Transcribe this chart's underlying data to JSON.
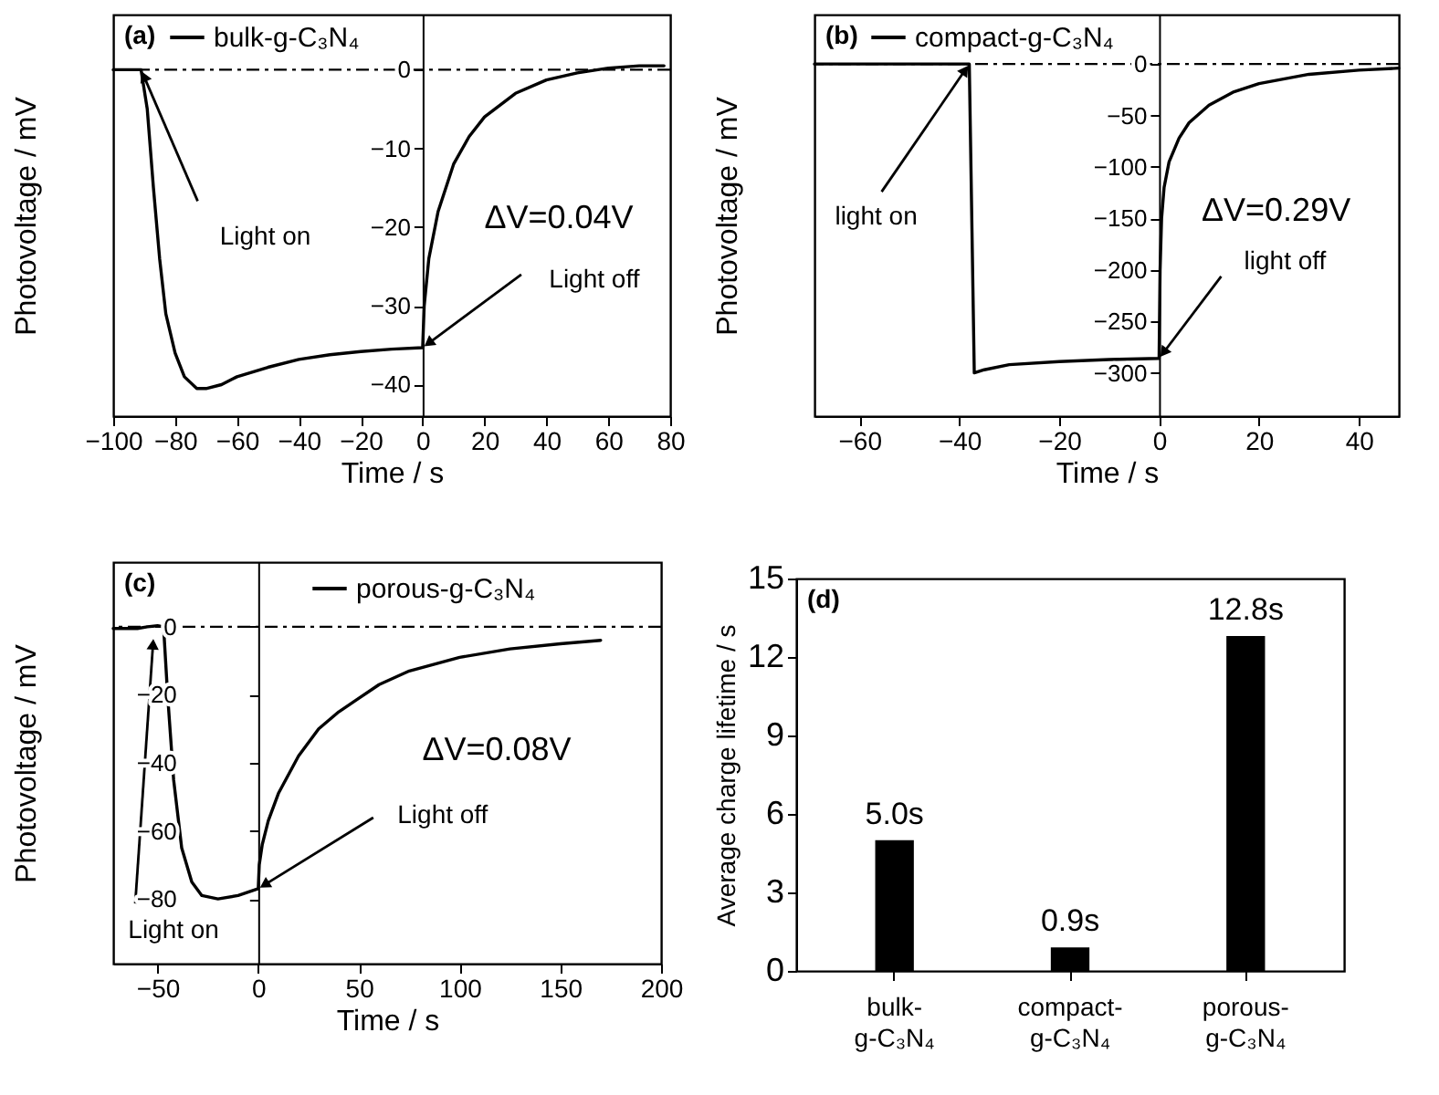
{
  "chart_data": [
    {
      "type": "line",
      "title": "(a)",
      "xlabel": "Time / s",
      "ylabel": "Photovoltage / mV",
      "x": [
        -100,
        -91,
        -89,
        -87,
        -85,
        -83,
        -80,
        -77,
        -73,
        -70,
        -65,
        -60,
        -50,
        -40,
        -30,
        -20,
        -10,
        0,
        0.5,
        2,
        5,
        10,
        15,
        20,
        30,
        40,
        50,
        60,
        70,
        78
      ],
      "series": [
        {
          "name": "bulk-g-C₃N₄",
          "color": "#000000",
          "values": [
            0,
            0,
            -5,
            -15,
            -24,
            -31,
            -36,
            -39,
            -40.5,
            -40.5,
            -40,
            -39,
            -37.8,
            -36.8,
            -36.2,
            -35.8,
            -35.5,
            -35.3,
            -30,
            -24,
            -18,
            -12,
            -8.5,
            -6,
            -3,
            -1.3,
            -0.4,
            0.2,
            0.5,
            0.5
          ]
        }
      ],
      "xlim": [
        -100,
        80
      ],
      "xticks": [
        -100,
        -80,
        -60,
        -40,
        -20,
        0,
        20,
        40,
        60,
        80
      ],
      "ylim": [
        -44,
        7
      ],
      "yticks": [
        -40,
        -30,
        -20,
        -10,
        0
      ],
      "legend": "top left",
      "ref_lines": [
        {
          "axis": "y",
          "value": 0,
          "line_style": "dashdot"
        }
      ],
      "annotations": [
        {
          "text": "Light on",
          "x": -91,
          "y": 0
        },
        {
          "text": "Light off",
          "x": 0,
          "y": -35.3
        },
        "ΔV=0.04V"
      ]
    },
    {
      "type": "line",
      "title": "(b)",
      "xlabel": "Time / s",
      "ylabel": "Photovoltage / mV",
      "x": [
        -69,
        -38,
        -37,
        -35,
        -30,
        -20,
        -10,
        0,
        0.2,
        0.5,
        1,
        2,
        4,
        6,
        10,
        15,
        20,
        30,
        40,
        48
      ],
      "series": [
        {
          "name": "compact-g-C₃N₄",
          "color": "#000000",
          "values": [
            0,
            0,
            -300,
            -297,
            -292,
            -289,
            -287,
            -286,
            -200,
            -150,
            -120,
            -95,
            -72,
            -57,
            -40,
            -27,
            -19,
            -10,
            -6,
            -4
          ]
        }
      ],
      "xlim": [
        -69,
        48
      ],
      "xticks": [
        -60,
        -40,
        -20,
        0,
        20,
        40
      ],
      "ylim": [
        -342,
        48
      ],
      "yticks": [
        -300,
        -250,
        -200,
        -150,
        -100,
        -50,
        0
      ],
      "legend": "top left",
      "ref_lines": [
        {
          "axis": "y",
          "value": 0,
          "line_style": "dashdot"
        }
      ],
      "annotations": [
        {
          "text": "light on",
          "x": -38,
          "y": 0
        },
        {
          "text": "light off",
          "x": 0,
          "y": -286
        },
        "ΔV=0.29V"
      ]
    },
    {
      "type": "line",
      "title": "(c)",
      "xlabel": "Time / s",
      "ylabel": "Photovoltage / mV",
      "x": [
        -72,
        -60,
        -55,
        -50,
        -47,
        -45,
        -42,
        -38,
        -33,
        -28,
        -20,
        -10,
        0,
        0.5,
        2,
        5,
        10,
        20,
        30,
        40,
        50,
        60,
        75,
        100,
        125,
        150,
        170
      ],
      "series": [
        {
          "name": "porous-g-C₃N₄",
          "color": "#000000",
          "values": [
            -0.5,
            -0.5,
            0,
            0.3,
            0,
            -20,
            -45,
            -65,
            -75,
            -79,
            -80,
            -79,
            -77,
            -70,
            -64,
            -57,
            -49,
            -38,
            -30,
            -25,
            -21,
            -17,
            -13,
            -9,
            -6.5,
            -5,
            -4
          ]
        }
      ],
      "xlim": [
        -72,
        200
      ],
      "xticks": [
        -50,
        0,
        50,
        100,
        150,
        200
      ],
      "ylim": [
        -99,
        19
      ],
      "yticks": [
        -80,
        -60,
        -40,
        -20,
        0
      ],
      "legend": "top",
      "ref_lines": [
        {
          "axis": "y",
          "value": 0,
          "line_style": "dashdot"
        }
      ],
      "annotations": [
        {
          "text": "Light on",
          "x": -52,
          "y": -3
        },
        {
          "text": "Light off",
          "x": 0,
          "y": -77
        },
        "ΔV=0.08V"
      ]
    },
    {
      "type": "bar",
      "title": "(d)",
      "ylabel": "Average charge lifetime / s",
      "categories": [
        "bulk-g-C₃N₄",
        "compact-g-C₃N₄",
        "porous-g-C₃N₄"
      ],
      "values": [
        5.0,
        0.9,
        12.8
      ],
      "color": "#000000",
      "ylim": [
        0,
        15
      ],
      "yticks": [
        0,
        3,
        6,
        9,
        12,
        15
      ],
      "value_labels": [
        "5.0s",
        "0.9s",
        "12.8s"
      ]
    }
  ]
}
